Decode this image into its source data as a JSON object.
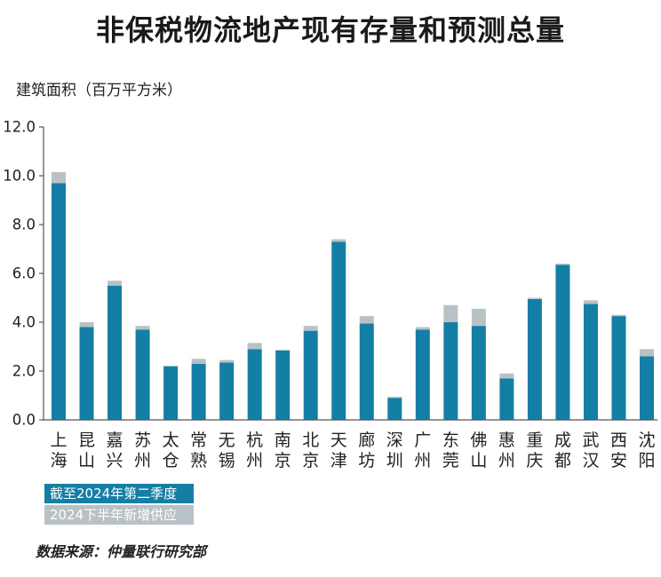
{
  "chart_data": {
    "type": "bar",
    "stacked": true,
    "title": "非保税物流地产现有存量和预测总量",
    "ylabel": "建筑面积（百万平方米）",
    "xlabel": "",
    "ylim": [
      0,
      12
    ],
    "yticks": [
      0,
      2,
      4,
      6,
      8,
      10,
      12
    ],
    "ytick_labels": [
      "0.0",
      "2.0",
      "4.0",
      "6.0",
      "8.0",
      "10.0",
      "12.0"
    ],
    "grid": false,
    "legend_position": "bottom-left",
    "categories": [
      "上海",
      "昆山",
      "嘉兴",
      "苏州",
      "太仓",
      "常熟",
      "无锡",
      "杭州",
      "南京",
      "北京",
      "天津",
      "廊坊",
      "深圳",
      "广州",
      "东莞",
      "佛山",
      "惠州",
      "重庆",
      "成都",
      "武汉",
      "西安",
      "沈阳"
    ],
    "series": [
      {
        "name": "截至2024年第二季度",
        "color": "#157ea4",
        "values": [
          9.7,
          3.8,
          5.5,
          3.7,
          2.2,
          2.3,
          2.35,
          2.9,
          2.85,
          3.65,
          7.3,
          3.95,
          0.9,
          3.7,
          4.0,
          3.85,
          1.7,
          4.95,
          6.35,
          4.75,
          4.25,
          2.6
        ]
      },
      {
        "name": "2024下半年新增供应",
        "color": "#b8c1c6",
        "values": [
          0.45,
          0.2,
          0.2,
          0.15,
          0,
          0.2,
          0.1,
          0.25,
          0,
          0.2,
          0.1,
          0.3,
          0.05,
          0.1,
          0.7,
          0.7,
          0.2,
          0.05,
          0.05,
          0.15,
          0.05,
          0.3
        ]
      }
    ],
    "source": "数据来源：仲量联行研究部"
  }
}
